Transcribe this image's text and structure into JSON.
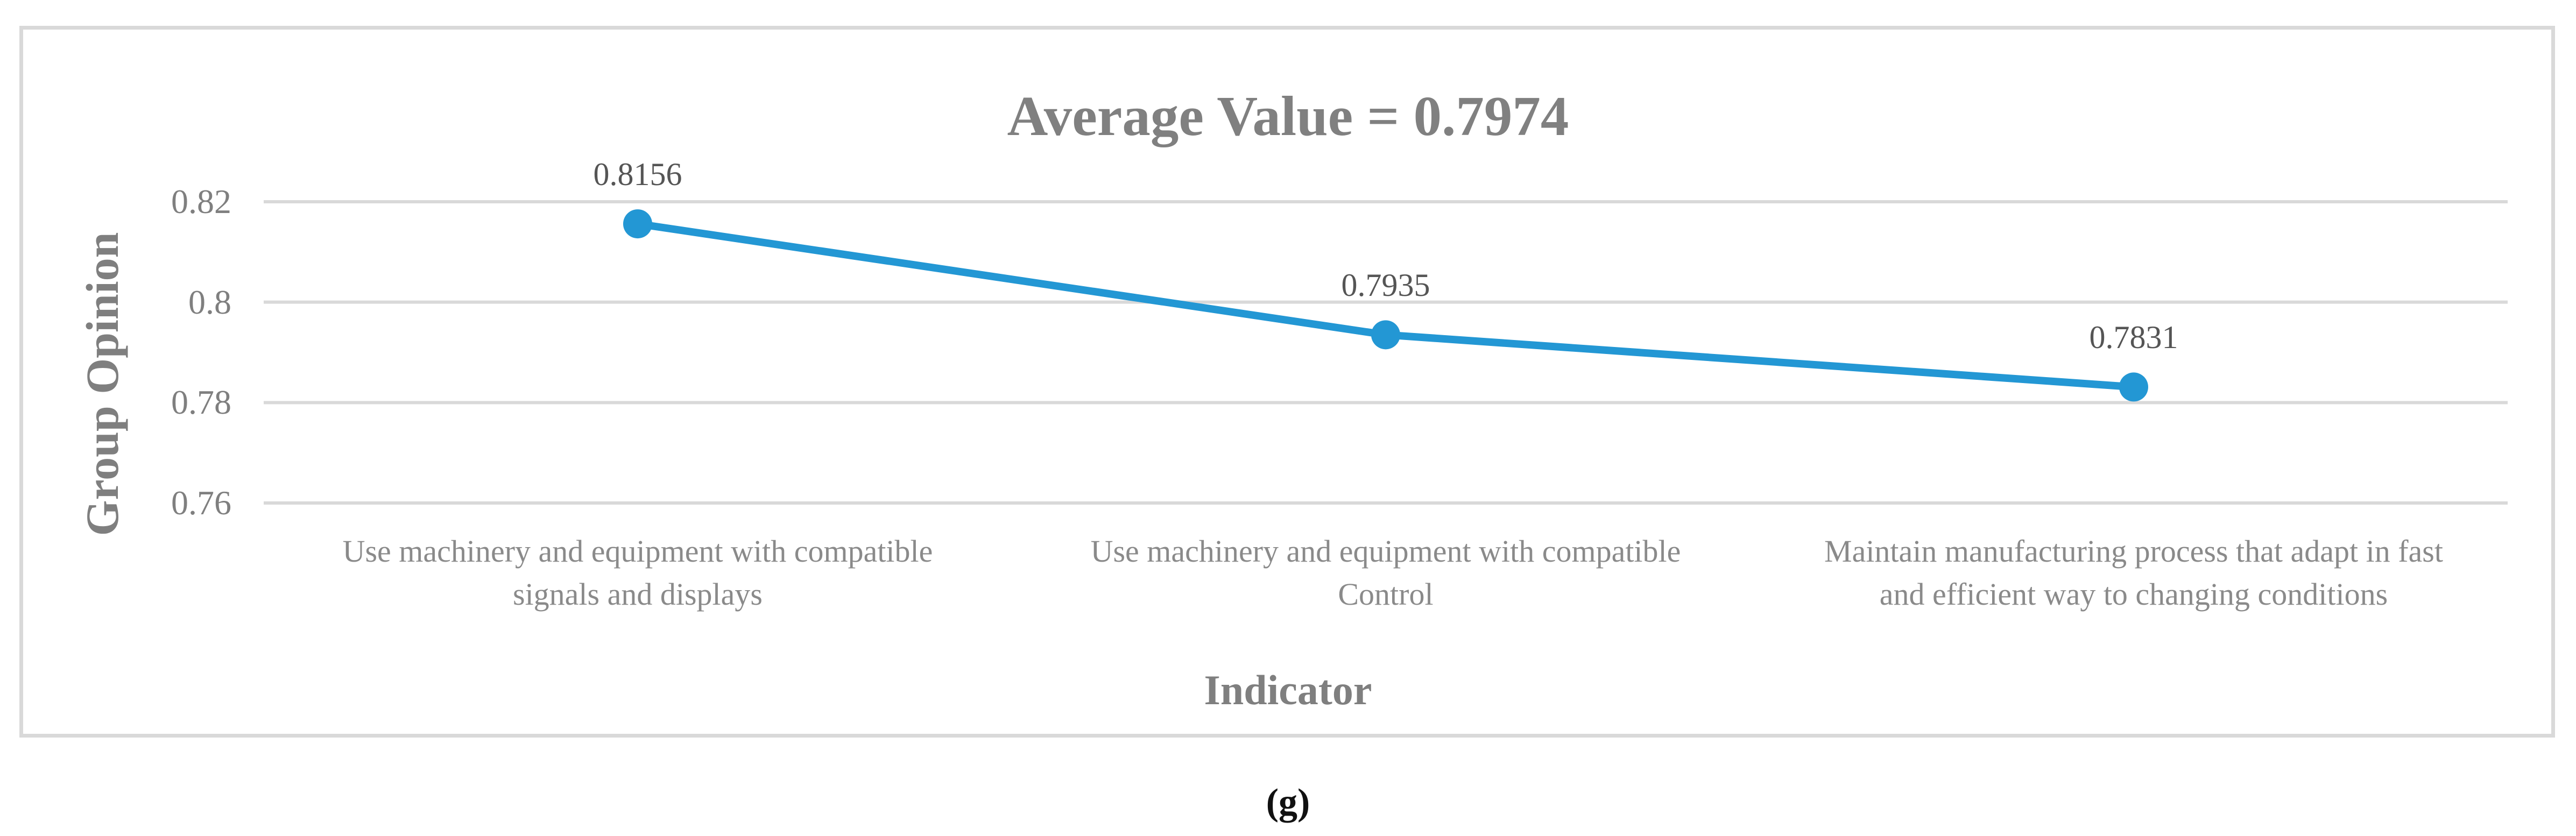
{
  "figure": {
    "caption": "(g)"
  },
  "chart_data": {
    "type": "line",
    "title": "Average Value = 0.7974",
    "xlabel": "Indicator",
    "ylabel": "Group Opinion",
    "categories": [
      "Use machinery and equipment with compatible signals and displays",
      "Use machinery and equipment with compatible Control",
      "Maintain manufacturing process that adapt in fast and efficient way to changing conditions"
    ],
    "category_lines": [
      [
        "Use machinery and equipment with compatible",
        "signals and displays"
      ],
      [
        "Use machinery and equipment with compatible",
        "Control"
      ],
      [
        "Maintain manufacturing process that adapt in fast",
        "and efficient way to changing conditions"
      ]
    ],
    "series": [
      {
        "name": "Group Opinion",
        "values": [
          0.8156,
          0.7935,
          0.7831
        ]
      }
    ],
    "data_labels": [
      "0.8156",
      "0.7935",
      "0.7831"
    ],
    "yticks": [
      "0.82",
      "0.8",
      "0.78",
      "0.76"
    ],
    "ylim": [
      0.75,
      0.83
    ],
    "grid": "horizontal-major",
    "legend": "none",
    "average_value": 0.7974,
    "marker": "circle",
    "colors": {
      "line": "#2397d4",
      "marker": "#2397d4",
      "gridline": "#d9d9d9",
      "frame_border": "#d9d9d9",
      "title_text": "#808080",
      "axis_title_text": "#7f7f7f",
      "tick_text": "#7f7f7f",
      "data_label_text": "#555555",
      "category_text": "#8a8a8a",
      "caption_text": "#111111"
    }
  }
}
